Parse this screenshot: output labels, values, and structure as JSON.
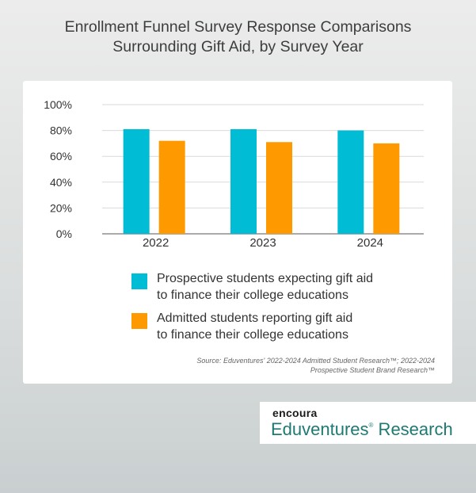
{
  "title": {
    "line1": "Enrollment Funnel Survey Response Comparisons",
    "line2": "Surrounding Gift Aid, by Survey Year"
  },
  "colors": {
    "series1": "#00bcd4",
    "series2": "#ff9900"
  },
  "chart_data": {
    "type": "bar",
    "categories": [
      "2022",
      "2023",
      "2024"
    ],
    "series": [
      {
        "name": "Prospective students expecting gift aid to finance their college educations",
        "values": [
          81,
          81,
          80
        ]
      },
      {
        "name": "Admitted students reporting gift aid to finance their college educations",
        "values": [
          72,
          71,
          70
        ]
      }
    ],
    "ylim": [
      0,
      100
    ],
    "yticks": [
      "0%",
      "20%",
      "40%",
      "60%",
      "80%",
      "100%"
    ],
    "ytick_values": [
      0,
      20,
      40,
      60,
      80,
      100
    ],
    "grid": true,
    "legend_position": "bottom"
  },
  "legend": {
    "item1": {
      "line1": "Prospective students expecting gift aid",
      "line2": "to finance their college educations"
    },
    "item2": {
      "line1": "Admitted students reporting gift aid",
      "line2": "to finance their college educations"
    }
  },
  "source": {
    "line1": "Source: Eduventures' 2022-2024 Admitted Student Research™; 2022-2024",
    "line2": "Prospective Student Brand Research™"
  },
  "logo": {
    "brand": "encoura",
    "name": "Eduventures",
    "mark": "®",
    "suffix": " Research"
  }
}
